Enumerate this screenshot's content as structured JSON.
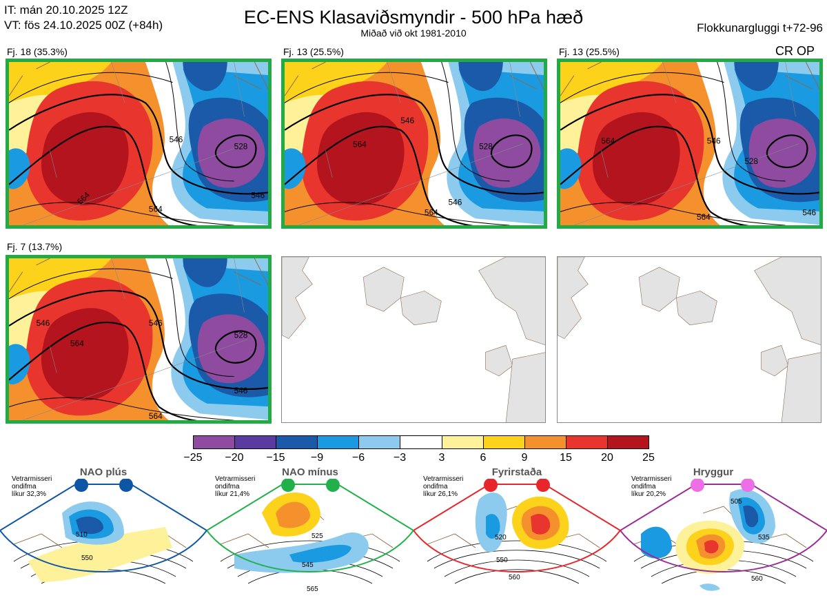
{
  "header": {
    "it_line": "IT: mán 20.10.2025 12Z",
    "vt_line": "VT: fös 24.10.2025 00Z  (+84h)",
    "title": "EC-ENS Klasaviðsmyndir - 500 hPa hæð",
    "subtitle": "Miðað við okt 1981-2010",
    "window": "Flokkunargluggi t+72-96"
  },
  "panels": [
    {
      "label": "Fj. 18 (35.3%)",
      "contours": [
        "546",
        "564",
        "546",
        "528",
        "546",
        "564",
        "528"
      ]
    },
    {
      "label": "Fj. 13 (25.5%)",
      "contours": [
        "546",
        "564",
        "546",
        "528",
        "546",
        "564",
        "528"
      ]
    },
    {
      "label": "Fj. 13 (25.5%)",
      "extra": "CR OP",
      "contours": [
        "546",
        "564",
        "546",
        "528",
        "546",
        "564",
        "528"
      ]
    },
    {
      "label": "Fj. 7 (13.7%)",
      "contours": [
        "546",
        "564",
        "546",
        "528",
        "546",
        "564",
        "528"
      ]
    }
  ],
  "colorbar": {
    "colors": [
      "#8e4ba0",
      "#5a3ba0",
      "#1b5aa8",
      "#1a9ae0",
      "#8ccbed",
      "#ffffff",
      "#fdf19a",
      "#fdd21a",
      "#f5912d",
      "#e8352d",
      "#b3141e"
    ],
    "ticks": [
      "−25",
      "−20",
      "−15",
      "−9",
      "−6",
      "−3",
      "3",
      "6",
      "9",
      "15",
      "20",
      "25"
    ]
  },
  "regimes": [
    {
      "name": "NAO plús",
      "note": "Vetrarmisseri\nondifma\nlíkur 32,3%",
      "color": "#0d56a6",
      "labels": [
        "510",
        "550"
      ]
    },
    {
      "name": "NAO mínus",
      "note": "Vetrarmisseri\nondifma\nlíkur 21,4%",
      "color": "#22b04a",
      "labels": [
        "525",
        "545",
        "565"
      ]
    },
    {
      "name": "Fyrirstaða",
      "note": "Vetrarmisseri\nondifma\nlíkur 26,1%",
      "color": "#e8252a",
      "labels": [
        "520",
        "550",
        "560"
      ]
    },
    {
      "name": "Hryggur",
      "note": "Vetrarmisseri\nondifma\nlíkur 20,2%",
      "color": "#9b2c96",
      "labels": [
        "505",
        "535",
        "560"
      ]
    }
  ]
}
